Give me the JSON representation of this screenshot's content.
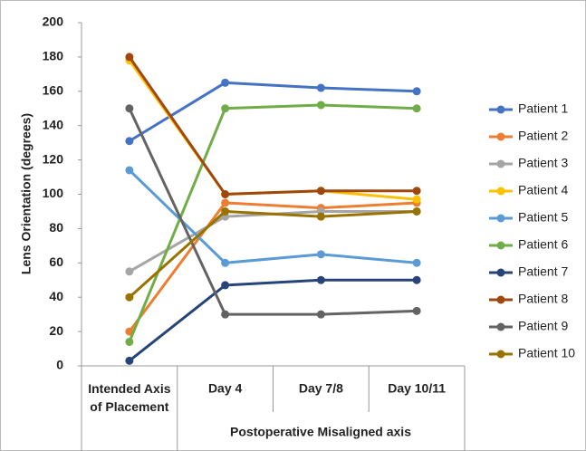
{
  "chart_data": {
    "type": "line",
    "y_label": "Lens Orientation (degrees)",
    "x_label": "Postoperative  Misaligned axis",
    "categories": [
      "Intended Axis of Placement",
      "Day 4",
      "Day 7/8",
      "Day 10/11"
    ],
    "ylim": [
      0,
      200
    ],
    "yticks": [
      0,
      20,
      40,
      60,
      80,
      100,
      120,
      140,
      160,
      180,
      200
    ],
    "grid": false,
    "legend": "right",
    "series": [
      {
        "name": "Patient 1",
        "color": "#4472c4",
        "values": [
          131,
          165,
          162,
          160
        ]
      },
      {
        "name": "Patient 2",
        "color": "#ed7d31",
        "values": [
          20,
          95,
          92,
          95
        ]
      },
      {
        "name": "Patient 3",
        "color": "#a5a5a5",
        "values": [
          55,
          87,
          90,
          90
        ]
      },
      {
        "name": "Patient 4",
        "color": "#ffc000",
        "values": [
          178,
          100,
          102,
          97
        ]
      },
      {
        "name": "Patient 5",
        "color": "#5b9bd5",
        "values": [
          114,
          60,
          65,
          60
        ]
      },
      {
        "name": "Patient 6",
        "color": "#70ad47",
        "values": [
          14,
          150,
          152,
          150
        ]
      },
      {
        "name": "Patient 7",
        "color": "#264478",
        "values": [
          3,
          47,
          50,
          50
        ]
      },
      {
        "name": "Patient 8",
        "color": "#9e480e",
        "values": [
          180,
          100,
          102,
          102
        ]
      },
      {
        "name": "Patient 9",
        "color": "#636363",
        "values": [
          150,
          30,
          30,
          32
        ]
      },
      {
        "name": "Patient 10",
        "color": "#997300",
        "values": [
          40,
          90,
          87,
          90
        ]
      }
    ]
  }
}
